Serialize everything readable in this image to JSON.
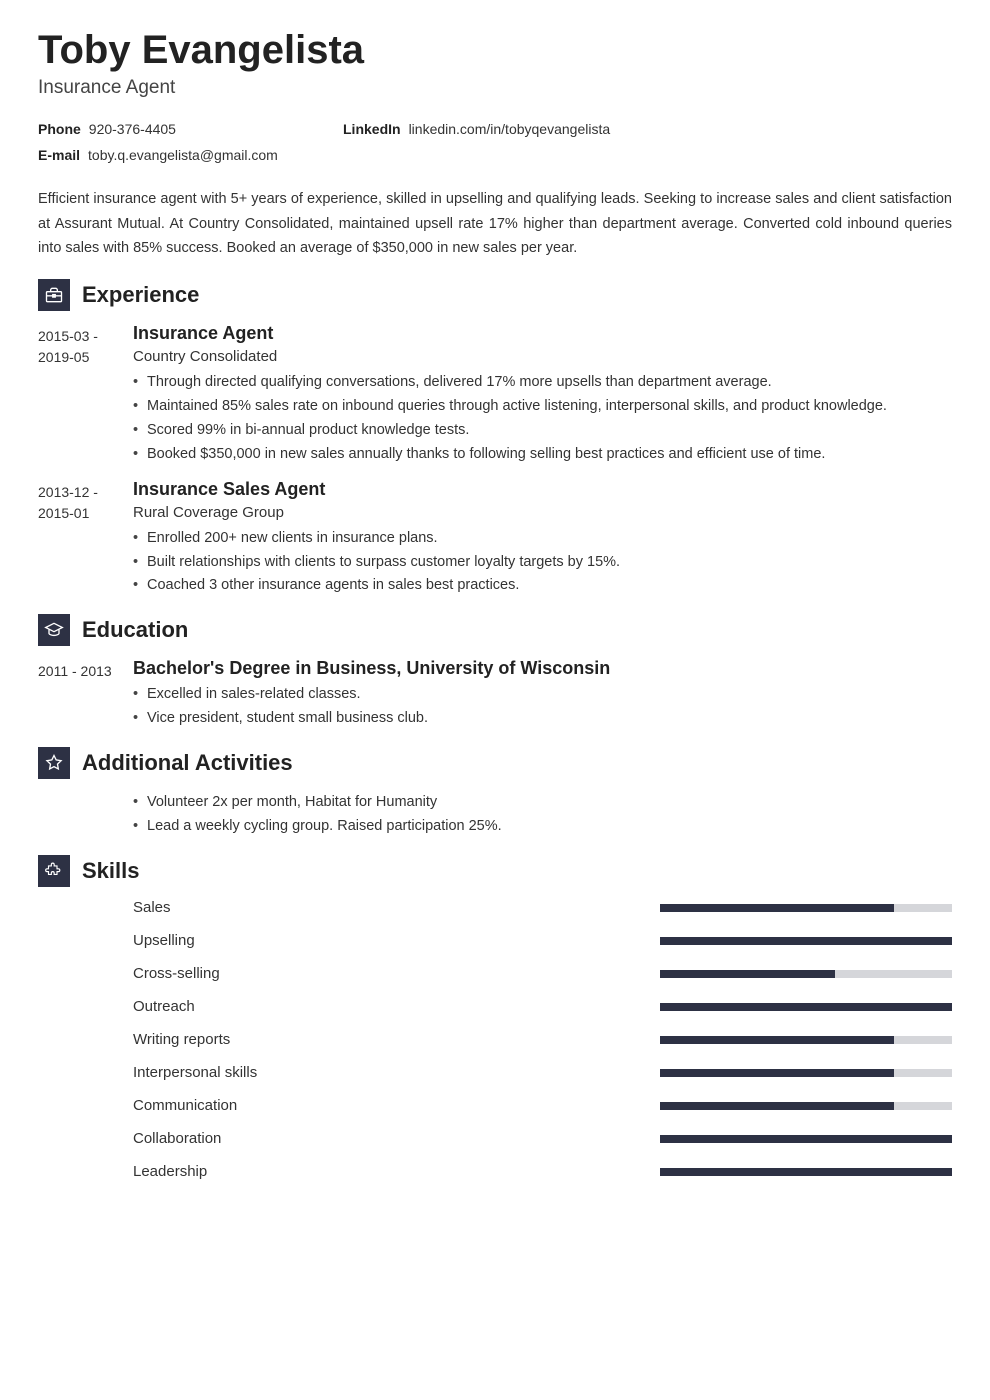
{
  "header": {
    "name": "Toby Evangelista",
    "title": "Insurance Agent"
  },
  "contacts": [
    {
      "label": "Phone",
      "value": "920-376-4405",
      "col": 1
    },
    {
      "label": "LinkedIn",
      "value": "linkedin.com/in/tobyqevangelista",
      "col": 2
    },
    {
      "label": "E-mail",
      "value": "toby.q.evangelista@gmail.com",
      "col": 1
    }
  ],
  "summary": "Efficient insurance agent with 5+ years of experience, skilled in upselling and qualifying leads. Seeking to increase sales and client satisfaction at Assurant Mutual. At Country Consolidated, maintained upsell rate 17% higher than department average. Converted cold inbound queries into sales with 85% success. Booked an average of $350,000 in new sales per year.",
  "sections": {
    "experience": {
      "title": "Experience",
      "icon": "briefcase",
      "entries": [
        {
          "dates": "2015-03 - 2019-05",
          "title": "Insurance Agent",
          "subtitle": "Country Consolidated",
          "bullets": [
            "Through directed qualifying conversations, delivered 17% more upsells than department average.",
            "Maintained 85% sales rate on inbound queries through active listening, interpersonal skills, and product knowledge.",
            "Scored 99% in bi-annual product knowledge tests.",
            "Booked $350,000 in new sales annually thanks to following selling best practices and efficient use of time."
          ]
        },
        {
          "dates": "2013-12 - 2015-01",
          "title": "Insurance Sales Agent",
          "subtitle": "Rural Coverage Group",
          "bullets": [
            "Enrolled 200+ new clients in insurance plans.",
            "Built relationships with clients to surpass customer loyalty targets by 15%.",
            "Coached 3 other insurance agents in sales best practices."
          ]
        }
      ]
    },
    "education": {
      "title": "Education",
      "icon": "grad",
      "entries": [
        {
          "dates": "2011 - 2013",
          "title": "Bachelor's Degree in Business, University of Wisconsin",
          "bullets": [
            "Excelled in sales-related classes.",
            "Vice president, student small business club."
          ]
        }
      ]
    },
    "activities": {
      "title": "Additional Activities",
      "icon": "star",
      "bullets": [
        "Volunteer 2x per month, Habitat for Humanity",
        "Lead a weekly cycling group. Raised participation 25%."
      ]
    },
    "skills": {
      "title": "Skills",
      "icon": "puzzle",
      "items": [
        {
          "label": "Sales",
          "level": 80
        },
        {
          "label": "Upselling",
          "level": 100
        },
        {
          "label": "Cross-selling",
          "level": 60
        },
        {
          "label": "Outreach",
          "level": 100
        },
        {
          "label": "Writing reports",
          "level": 80
        },
        {
          "label": "Interpersonal skills",
          "level": 80
        },
        {
          "label": "Communication",
          "level": 80
        },
        {
          "label": "Collaboration",
          "level": 100
        },
        {
          "label": "Leadership",
          "level": 100
        }
      ]
    }
  },
  "colors": {
    "accent": "#2d3144",
    "bar_bg": "#d5d6da",
    "text": "#222222"
  }
}
